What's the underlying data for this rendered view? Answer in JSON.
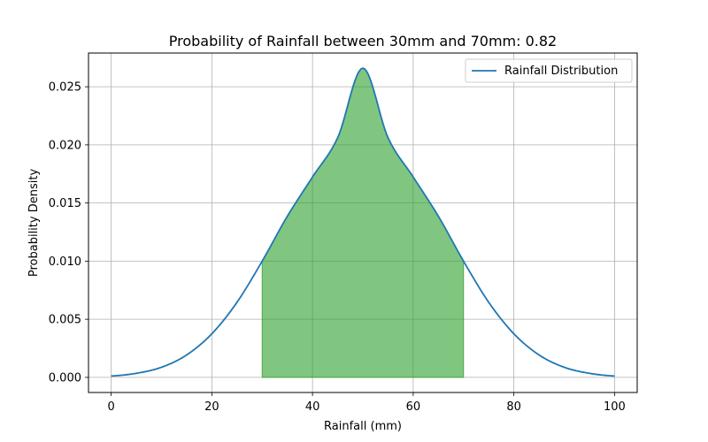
{
  "chart_data": {
    "type": "line",
    "title": "Probability of Rainfall between 30mm and 70mm: 0.82",
    "xlabel": "Rainfall (mm)",
    "ylabel": "Probability Density",
    "xlim": [
      -4.5,
      104.5
    ],
    "ylim": [
      -0.0013,
      0.0279
    ],
    "x_ticks": [
      0,
      20,
      40,
      60,
      80,
      100
    ],
    "x_tick_labels": [
      "0",
      "20",
      "40",
      "60",
      "80",
      "100"
    ],
    "y_ticks": [
      0.0,
      0.005,
      0.01,
      0.015,
      0.02,
      0.025
    ],
    "y_tick_labels": [
      "0.000",
      "0.005",
      "0.010",
      "0.015",
      "0.020",
      "0.025"
    ],
    "grid": true,
    "legend_position": "top-right",
    "series": [
      {
        "name": "Rainfall Distribution",
        "color": "#1f77b4",
        "x": [
          0,
          5,
          10,
          15,
          20,
          25,
          30,
          35,
          40,
          45,
          50,
          55,
          60,
          65,
          70,
          75,
          80,
          85,
          90,
          95,
          100
        ],
        "y": [
          0.00012,
          0.00035,
          0.00087,
          0.00193,
          0.00375,
          0.00646,
          0.01,
          0.01386,
          0.01724,
          0.02062,
          0.0266,
          0.02062,
          0.01724,
          0.01386,
          0.01,
          0.00646,
          0.00375,
          0.00193,
          0.00087,
          0.00035,
          0.00012
        ]
      }
    ],
    "shaded_region": {
      "x_start": 30,
      "x_end": 70,
      "color": "#2ca02c",
      "probability": 0.82
    }
  }
}
